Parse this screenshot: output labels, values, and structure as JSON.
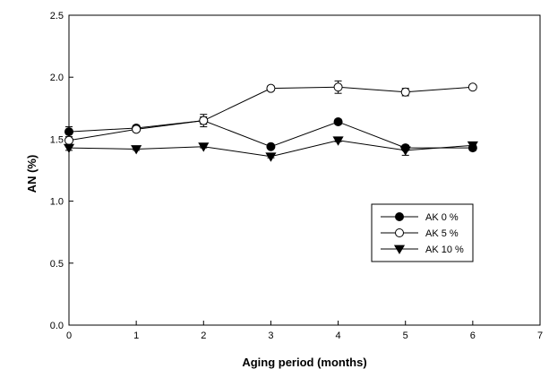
{
  "chart_data": {
    "type": "line",
    "title": "",
    "xlabel": "Aging period (months)",
    "ylabel": "AN (%)",
    "xlim": [
      0,
      7
    ],
    "ylim": [
      0.0,
      2.5
    ],
    "x_ticks": [
      "0",
      "1",
      "2",
      "3",
      "4",
      "5",
      "6",
      "7"
    ],
    "y_ticks": [
      "0.0",
      "0.5",
      "1.0",
      "1.5",
      "2.0",
      "2.5"
    ],
    "grid": false,
    "legend_position": "right-middle",
    "x": [
      0,
      1,
      2,
      3,
      4,
      5,
      6
    ],
    "series": [
      {
        "name": "AK 0 %",
        "marker": "filled-circle",
        "values": [
          1.56,
          1.59,
          1.65,
          1.44,
          1.64,
          1.43,
          1.43
        ],
        "errors": [
          0.04,
          0.02,
          0.03,
          0.01,
          0.02,
          0.02,
          0.02
        ]
      },
      {
        "name": "AK 5 %",
        "marker": "open-circle",
        "values": [
          1.49,
          1.58,
          1.65,
          1.91,
          1.92,
          1.88,
          1.92
        ],
        "errors": [
          0.02,
          0.02,
          0.05,
          0.02,
          0.05,
          0.03,
          0.02
        ]
      },
      {
        "name": "AK 10 %",
        "marker": "filled-triangle-down",
        "values": [
          1.43,
          1.42,
          1.44,
          1.36,
          1.49,
          1.41,
          1.45
        ],
        "errors": [
          0.02,
          0.01,
          0.01,
          0.01,
          0.01,
          0.04,
          0.02
        ]
      }
    ]
  }
}
